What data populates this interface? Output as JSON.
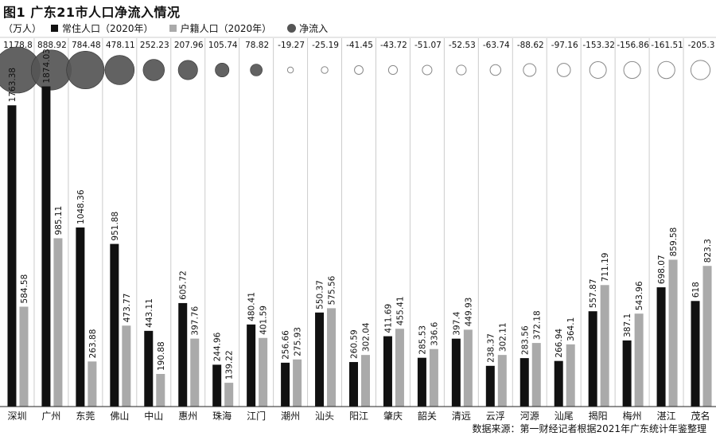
{
  "title": "图1 广东21市人口净流入情况",
  "legend": {
    "unit": "（万人）",
    "items": [
      {
        "label": "常住人口（2020年）",
        "color": "#111111"
      },
      {
        "label": "户籍人口（2020年）",
        "color": "#aaaaaa"
      },
      {
        "label": "净流入",
        "color": "#555555"
      }
    ]
  },
  "source": "数据来源：第一财经记者根据2021年广东统计年鉴整理",
  "colors": {
    "resident": "#111111",
    "registered": "#aaaaaa",
    "bubble_fill": "#555555",
    "bubble_outline": "#999999",
    "grid": "#cccccc",
    "baseline": "#222222"
  },
  "chart_data": {
    "type": "bar",
    "categories": [
      "深圳",
      "广州",
      "东莞",
      "佛山",
      "中山",
      "惠州",
      "珠海",
      "江门",
      "潮州",
      "汕头",
      "阳江",
      "肇庆",
      "韶关",
      "清远",
      "云浮",
      "河源",
      "汕尾",
      "揭阳",
      "梅州",
      "湛江",
      "茂名"
    ],
    "series": [
      {
        "name": "常住人口（2020年）",
        "values": [
          1763.38,
          1874.03,
          1048.36,
          951.88,
          443.11,
          605.72,
          244.96,
          480.41,
          256.66,
          550.37,
          260.59,
          411.69,
          285.53,
          397.4,
          238.37,
          283.56,
          266.94,
          557.87,
          387.1,
          698.07,
          618
        ]
      },
      {
        "name": "户籍人口（2020年）",
        "values": [
          584.58,
          985.11,
          263.88,
          473.77,
          190.88,
          397.76,
          139.22,
          401.59,
          275.93,
          575.56,
          302.04,
          455.41,
          336.6,
          449.93,
          302.11,
          372.18,
          364.1,
          711.19,
          543.96,
          859.58,
          823.3
        ]
      }
    ],
    "net_inflow": {
      "name": "净流入",
      "values": [
        1178.8,
        888.92,
        784.48,
        478.11,
        252.23,
        207.96,
        105.74,
        78.82,
        -19.27,
        -25.19,
        -41.45,
        -43.72,
        -51.07,
        -52.53,
        -63.74,
        -88.62,
        -97.16,
        -153.32,
        -156.86,
        -161.51,
        -205.3
      ]
    },
    "ylim": [
      0,
      1900
    ],
    "grid": "vertical dividers between cities",
    "legend_position": "top-left"
  }
}
